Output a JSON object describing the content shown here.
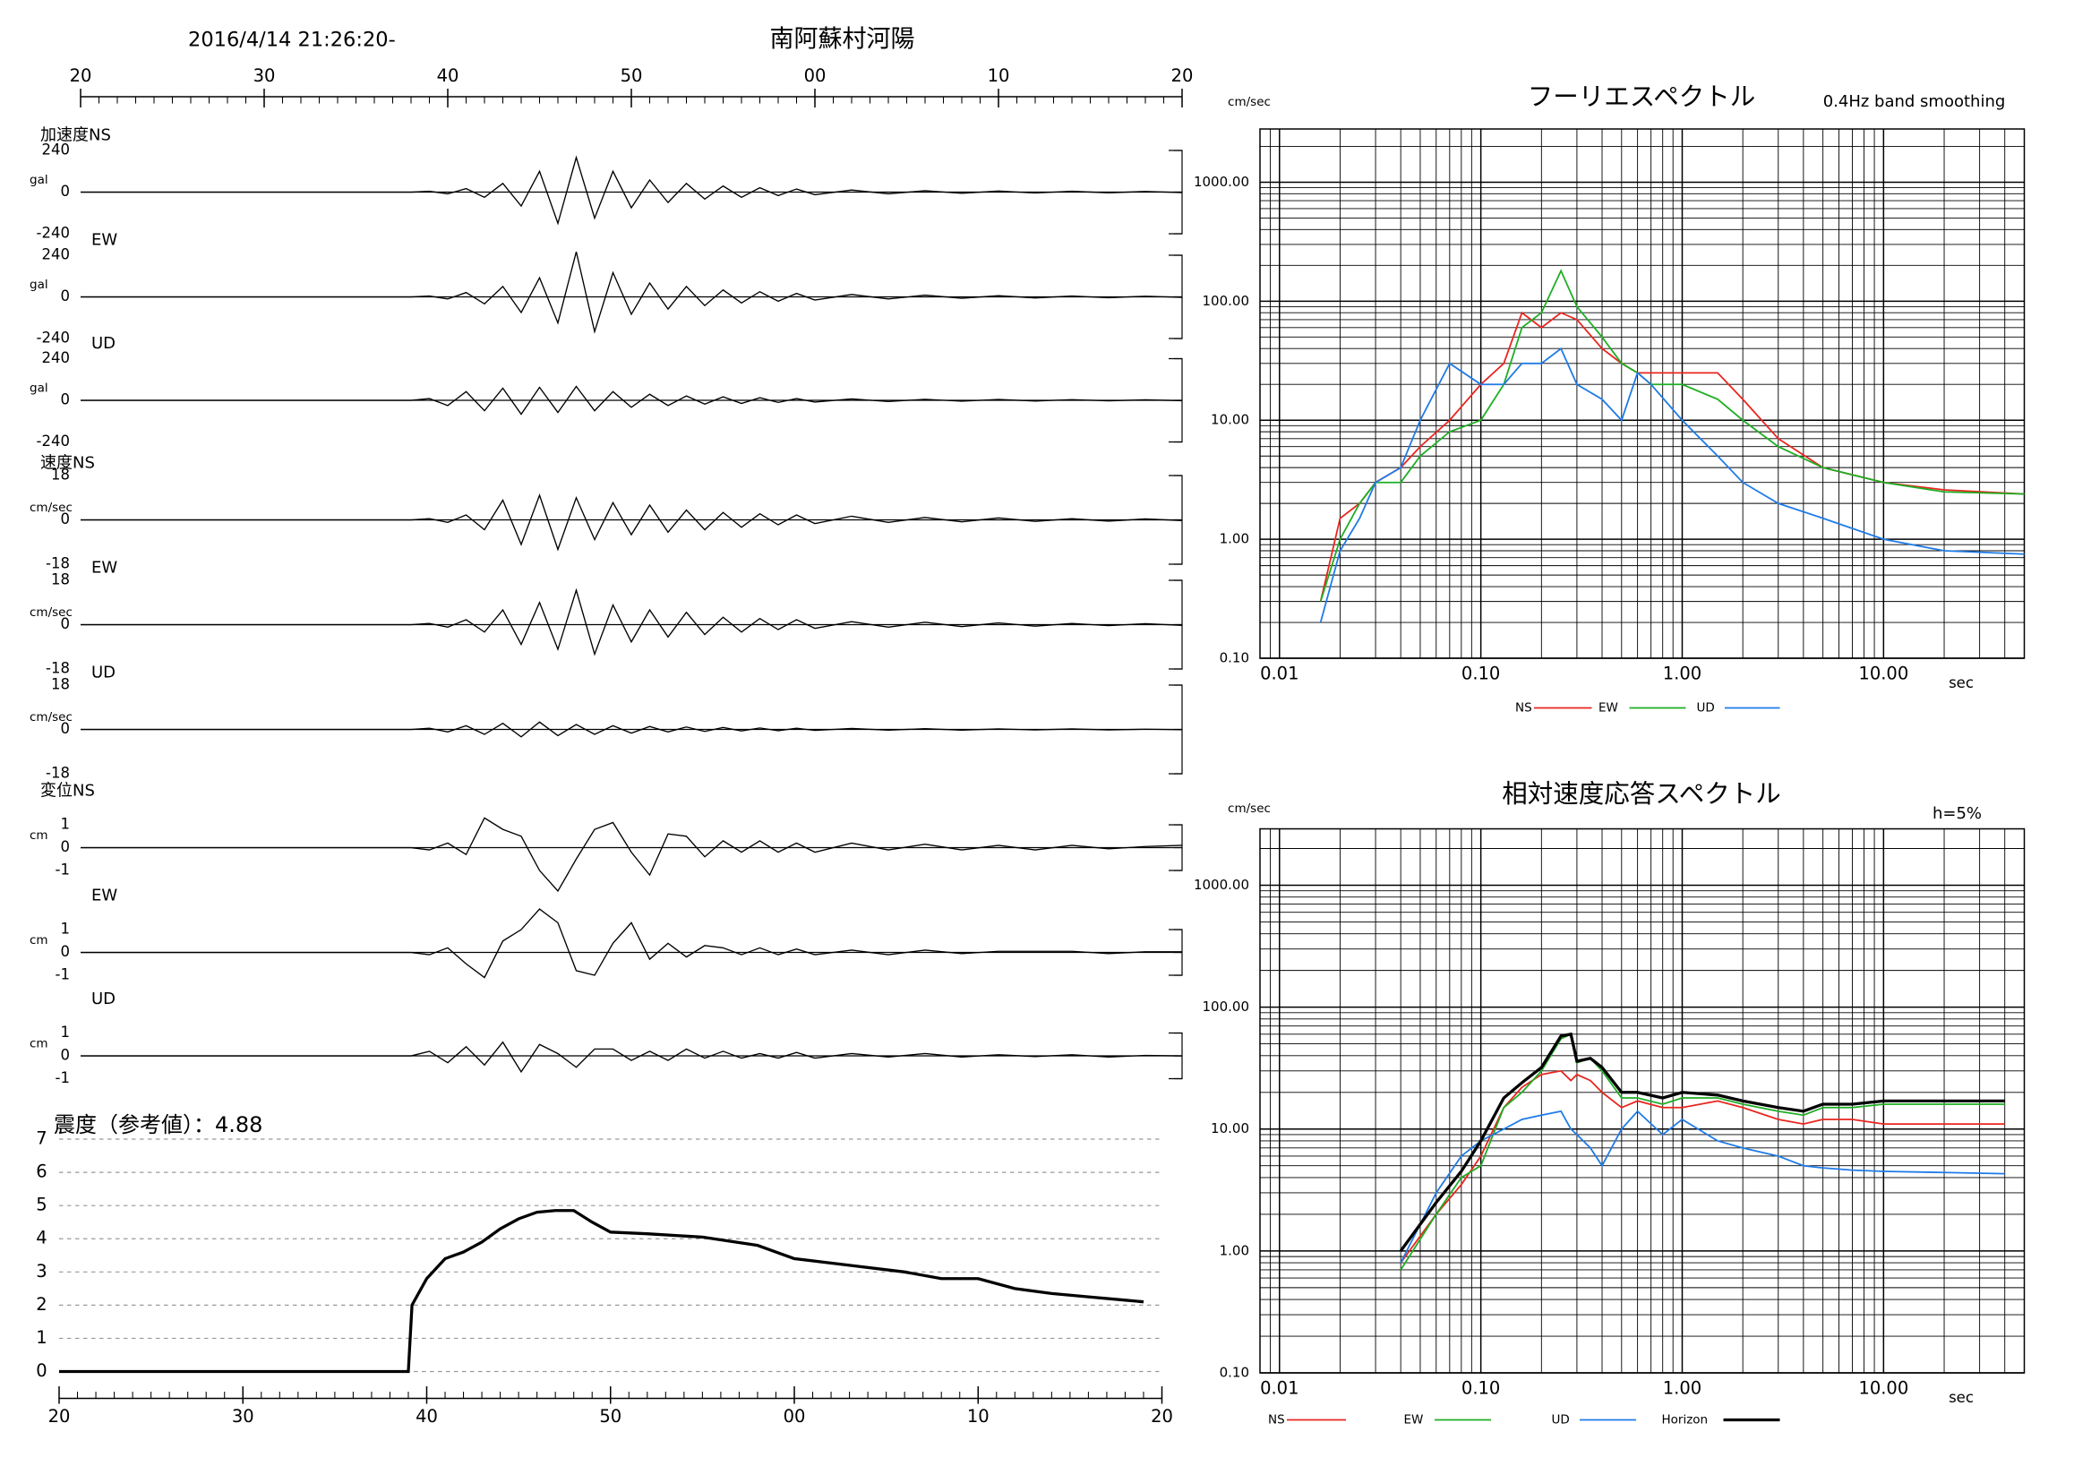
{
  "chart_data": [
    {
      "type": "waveform",
      "title": "南阿蘇村河陽",
      "subtitle": "2016/4/14 21:26:20-",
      "xlim": [
        20,
        80
      ],
      "xticks": [
        20,
        30,
        40,
        50,
        {
          "value": 60,
          "label": "00"
        },
        {
          "value": 70,
          "label": "10"
        },
        {
          "value": 80,
          "label": "20"
        }
      ],
      "x": [
        20,
        38,
        39,
        40,
        41,
        42,
        43,
        44,
        45,
        46,
        47,
        48,
        49,
        50,
        51,
        52,
        53,
        54,
        55,
        56,
        57,
        58,
        59,
        60,
        62,
        64,
        66,
        68,
        70,
        72,
        74,
        76,
        78,
        80
      ],
      "panels": [
        {
          "label": "加速度NS",
          "unit": "gal",
          "ylim": [
            -240,
            240
          ],
          "yticks": [
            240,
            0,
            -240
          ],
          "values": [
            0,
            0,
            5,
            -10,
            20,
            -30,
            50,
            -80,
            120,
            -180,
            200,
            -150,
            120,
            -90,
            70,
            -60,
            50,
            -40,
            35,
            -30,
            25,
            -20,
            18,
            -15,
            12,
            -10,
            8,
            -7,
            6,
            -5,
            5,
            -4,
            4,
            -3
          ]
        },
        {
          "label": "EW",
          "unit": "gal",
          "ylim": [
            -240,
            240
          ],
          "yticks": [
            240,
            0,
            -240
          ],
          "values": [
            0,
            0,
            5,
            -12,
            25,
            -40,
            60,
            -90,
            110,
            -150,
            260,
            -200,
            140,
            -100,
            80,
            -70,
            60,
            -50,
            40,
            -35,
            30,
            -25,
            20,
            -18,
            14,
            -12,
            10,
            -8,
            7,
            -6,
            5,
            -5,
            4,
            -3
          ]
        },
        {
          "label": "UD",
          "unit": "gal",
          "ylim": [
            -240,
            240
          ],
          "yticks": [
            240,
            0,
            -240
          ],
          "values": [
            0,
            0,
            10,
            -30,
            50,
            -60,
            70,
            -80,
            75,
            -70,
            80,
            -60,
            50,
            -40,
            35,
            -30,
            25,
            -22,
            20,
            -18,
            15,
            -12,
            10,
            -10,
            8,
            -7,
            6,
            -5,
            5,
            -4,
            4,
            -3,
            3,
            -2
          ]
        },
        {
          "label": "速度NS",
          "unit": "cm/sec",
          "ylim": [
            -18,
            18
          ],
          "yticks": [
            18,
            0,
            -18
          ],
          "values": [
            0,
            0,
            0.5,
            -1,
            2,
            -4,
            8,
            -10,
            10,
            -12,
            9,
            -8,
            7,
            -6,
            6,
            -5,
            4,
            -4,
            3,
            -3,
            2.5,
            -2,
            2,
            -1.5,
            1.5,
            -1,
            1,
            -0.8,
            0.8,
            -0.6,
            0.5,
            -0.5,
            0.4,
            -0.3
          ]
        },
        {
          "label": "EW",
          "unit": "cm/sec",
          "ylim": [
            -18,
            18
          ],
          "yticks": [
            18,
            0,
            -18
          ],
          "values": [
            0,
            0,
            0.5,
            -1,
            2,
            -3,
            6,
            -8,
            9,
            -10,
            14,
            -12,
            8,
            -7,
            6,
            -5,
            5,
            -4,
            3,
            -3,
            2.5,
            -2,
            2,
            -1.5,
            1.2,
            -1,
            1,
            -0.8,
            0.7,
            -0.6,
            0.5,
            -0.4,
            0.4,
            -0.3
          ]
        },
        {
          "label": "UD",
          "unit": "cm/sec",
          "ylim": [
            -18,
            18
          ],
          "yticks": [
            18,
            0,
            -18
          ],
          "values": [
            0,
            0,
            0.5,
            -1,
            1.5,
            -2,
            2.5,
            -3,
            3,
            -2.5,
            2,
            -2,
            1.5,
            -1.5,
            1.2,
            -1,
            1,
            -0.8,
            0.8,
            -0.6,
            0.6,
            -0.5,
            0.5,
            -0.4,
            0.4,
            -0.3,
            0.3,
            -0.3,
            0.2,
            -0.2,
            0.2,
            -0.2,
            0.1,
            -0.1
          ]
        },
        {
          "label": "変位NS",
          "unit": "cm",
          "ylim": [
            -1,
            1
          ],
          "yticks": [
            1,
            0,
            -1
          ],
          "values": [
            0,
            0,
            -0.1,
            0.2,
            -0.3,
            1.3,
            0.8,
            0.5,
            -1.0,
            -1.9,
            -0.5,
            0.8,
            1.1,
            -0.2,
            -1.2,
            0.6,
            0.5,
            -0.4,
            0.3,
            -0.2,
            0.3,
            -0.2,
            0.2,
            -0.2,
            0.2,
            -0.1,
            0.15,
            -0.1,
            0.1,
            -0.1,
            0.1,
            -0.05,
            0.05,
            0.1
          ]
        },
        {
          "label": "EW",
          "unit": "cm",
          "ylim": [
            -1,
            1
          ],
          "yticks": [
            1,
            0,
            -1
          ],
          "values": [
            0,
            0,
            -0.1,
            0.2,
            -0.5,
            -1.1,
            0.5,
            1.0,
            1.9,
            1.3,
            -0.8,
            -1.0,
            0.4,
            1.3,
            -0.3,
            0.4,
            -0.2,
            0.3,
            0.2,
            -0.1,
            0.2,
            -0.1,
            0.15,
            -0.1,
            0.1,
            -0.1,
            0.1,
            -0.05,
            0.05,
            0.05,
            0.05,
            -0.05,
            0.03,
            0.03
          ]
        },
        {
          "label": "UD",
          "unit": "cm",
          "ylim": [
            -1,
            1
          ],
          "yticks": [
            1,
            0,
            -1
          ],
          "values": [
            0,
            0,
            0.2,
            -0.3,
            0.4,
            -0.4,
            0.6,
            -0.7,
            0.5,
            0.1,
            -0.5,
            0.3,
            0.3,
            -0.2,
            0.2,
            -0.2,
            0.3,
            -0.1,
            0.2,
            -0.1,
            0.1,
            -0.1,
            0.15,
            -0.1,
            0.1,
            -0.05,
            0.1,
            -0.05,
            0.05,
            -0.03,
            0.05,
            -0.05,
            0.02,
            0.0
          ]
        }
      ]
    },
    {
      "type": "line",
      "annotation": "震度（参考値）：4.88",
      "color": "#000000",
      "grid": true,
      "xlim": [
        20,
        80
      ],
      "xticks": [
        20,
        30,
        40,
        50,
        {
          "value": 60,
          "label": "00"
        },
        {
          "value": 70,
          "label": "10"
        },
        {
          "value": 80,
          "label": "20"
        }
      ],
      "ylim": [
        0,
        7
      ],
      "yticks": [
        0,
        1,
        2,
        3,
        4,
        5,
        6,
        7
      ],
      "x": [
        20,
        39,
        39.2,
        40,
        41,
        42,
        43,
        44,
        45,
        46,
        47,
        48,
        49,
        50,
        52,
        55,
        58,
        60,
        63,
        66,
        68,
        70,
        72,
        74,
        76,
        78,
        79
      ],
      "values": [
        0,
        0,
        2.0,
        2.8,
        3.4,
        3.6,
        3.9,
        4.3,
        4.6,
        4.8,
        4.85,
        4.85,
        4.5,
        4.2,
        4.15,
        4.05,
        3.8,
        3.4,
        3.2,
        3.0,
        2.8,
        2.8,
        2.5,
        2.35,
        2.25,
        2.15,
        2.1
      ]
    },
    {
      "type": "loglog",
      "title": "フーリエスペクトル",
      "subtitle": "0.4Hz band smoothing",
      "y_label": "cm/sec",
      "x_label": "sec",
      "grid": true,
      "xlim": [
        0.008,
        50
      ],
      "xticks": [
        0.01,
        {
          "value": 0.1,
          "label": "0.10"
        },
        {
          "value": 1,
          "label": "1.00"
        },
        {
          "value": 10,
          "label": "10.00"
        }
      ],
      "ylim": [
        0.1,
        2800
      ],
      "yticks": [
        {
          "value": 0.1,
          "label": "0.10"
        },
        {
          "value": 1,
          "label": "1.00"
        },
        {
          "value": 10,
          "label": "10.00"
        },
        {
          "value": 100,
          "label": "100.00"
        },
        {
          "value": 1000,
          "label": "1000.00"
        }
      ],
      "x": [
        0.016,
        0.02,
        0.025,
        0.03,
        0.04,
        0.05,
        0.07,
        0.1,
        0.13,
        0.16,
        0.2,
        0.25,
        0.3,
        0.4,
        0.5,
        0.6,
        0.7,
        1.0,
        1.5,
        2,
        3,
        5,
        10,
        20,
        50
      ],
      "series": [
        {
          "name": "NS",
          "color": "#e8261f",
          "values": [
            0.3,
            1.5,
            2,
            3,
            4,
            6,
            10,
            20,
            30,
            80,
            60,
            80,
            70,
            40,
            30,
            25,
            25,
            25,
            25,
            15,
            7,
            4,
            3,
            2.6,
            2.4
          ]
        },
        {
          "name": "EW",
          "color": "#1fae24",
          "values": [
            0.3,
            1,
            2,
            3,
            3,
            5,
            8,
            10,
            20,
            60,
            80,
            180,
            90,
            50,
            30,
            25,
            20,
            20,
            15,
            10,
            6,
            4,
            3,
            2.5,
            2.4
          ]
        },
        {
          "name": "UD",
          "color": "#1f7be8",
          "values": [
            0.2,
            0.8,
            1.5,
            3,
            4,
            10,
            30,
            20,
            20,
            30,
            30,
            40,
            20,
            15,
            10,
            25,
            20,
            10,
            5,
            3,
            2,
            1.5,
            1,
            0.8,
            0.75
          ]
        }
      ]
    },
    {
      "type": "loglog",
      "title": "相対速度応答スペクトル",
      "subtitle": "h=5%",
      "y_label": "cm/sec",
      "x_label": "sec",
      "grid": true,
      "xlim": [
        0.008,
        50
      ],
      "xticks": [
        0.01,
        {
          "value": 0.1,
          "label": "0.10"
        },
        {
          "value": 1,
          "label": "1.00"
        },
        {
          "value": 10,
          "label": "10.00"
        }
      ],
      "ylim": [
        0.1,
        2900
      ],
      "yticks": [
        {
          "value": 0.1,
          "label": "0.10"
        },
        {
          "value": 1,
          "label": "1.00"
        },
        {
          "value": 10,
          "label": "10.00"
        },
        {
          "value": 100,
          "label": "100.00"
        },
        {
          "value": 1000,
          "label": "1000.00"
        }
      ],
      "x": [
        0.04,
        0.06,
        0.08,
        0.1,
        0.13,
        0.16,
        0.2,
        0.25,
        0.28,
        0.3,
        0.35,
        0.4,
        0.5,
        0.6,
        0.8,
        1.0,
        1.5,
        2,
        3,
        4,
        5,
        7,
        10,
        20,
        40
      ],
      "series": [
        {
          "name": "NS",
          "color": "#e8261f",
          "values": [
            0.8,
            2,
            3.5,
            6,
            15,
            22,
            28,
            30,
            25,
            28,
            25,
            20,
            15,
            17,
            15,
            15,
            17,
            15,
            12,
            11,
            12,
            12,
            11,
            11,
            11
          ]
        },
        {
          "name": "EW",
          "color": "#1fae24",
          "values": [
            0.7,
            2,
            4,
            5,
            15,
            20,
            30,
            55,
            60,
            35,
            38,
            30,
            18,
            18,
            16,
            18,
            18,
            16,
            14,
            13,
            15,
            15,
            16,
            16,
            16
          ]
        },
        {
          "name": "UD",
          "color": "#1f7be8",
          "values": [
            0.8,
            3,
            6,
            8,
            10,
            12,
            13,
            14,
            10,
            9,
            7,
            5,
            10,
            14,
            9,
            12,
            8,
            7,
            6,
            5,
            4.8,
            4.6,
            4.5,
            4.4,
            4.3
          ]
        },
        {
          "name": "Horizon",
          "color": "#000000",
          "values": [
            1.0,
            2.5,
            4.5,
            8,
            18,
            24,
            32,
            58,
            60,
            36,
            38,
            32,
            20,
            20,
            18,
            20,
            19,
            17,
            15,
            14,
            16,
            16,
            17,
            17,
            17
          ]
        }
      ]
    }
  ]
}
